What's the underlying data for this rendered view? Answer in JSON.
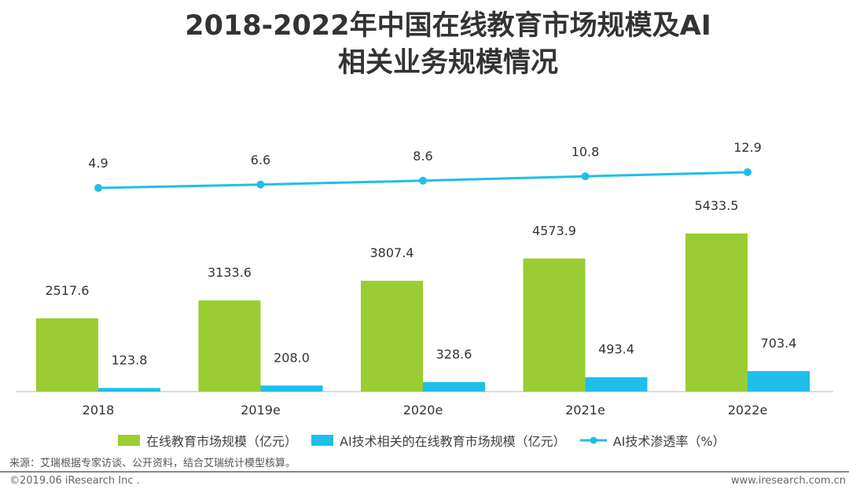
{
  "title_lines": [
    "2018-2022年中国在线教育市场规模及AI",
    "相关业务规模情况"
  ],
  "chart_data": {
    "type": "bar+line",
    "categories": [
      "2018",
      "2019e",
      "2020e",
      "2021e",
      "2022e"
    ],
    "series": [
      {
        "name": "在线教育市场规模（亿元）",
        "type": "bar",
        "color": "#9ACD32",
        "values": [
          2517.6,
          3133.6,
          3807.4,
          4573.9,
          5433.5
        ],
        "labels": [
          "2517.6",
          "3133.6",
          "3807.4",
          "4573.9",
          "5433.5"
        ]
      },
      {
        "name": "AI技术相关的在线教育市场规模（亿元）",
        "type": "bar",
        "color": "#1EBFEA",
        "values": [
          123.8,
          208.0,
          328.6,
          493.4,
          703.4
        ],
        "labels": [
          "123.8",
          "208.0",
          "328.6",
          "493.4",
          "703.4"
        ]
      },
      {
        "name": "AI技术渗透率（%）",
        "type": "line",
        "color": "#1EBFEA",
        "values": [
          4.9,
          6.6,
          8.6,
          10.8,
          12.9
        ],
        "labels": [
          "4.9",
          "6.6",
          "8.6",
          "10.8",
          "12.9"
        ]
      }
    ],
    "legend": "bottom",
    "grid": false
  },
  "source": "来源：艾瑞根据专家访谈、公开资料，结合艾瑞统计模型核算。",
  "copyright": "©2019.06 iResearch Inc .",
  "website": "www.iresearch.com.cn"
}
